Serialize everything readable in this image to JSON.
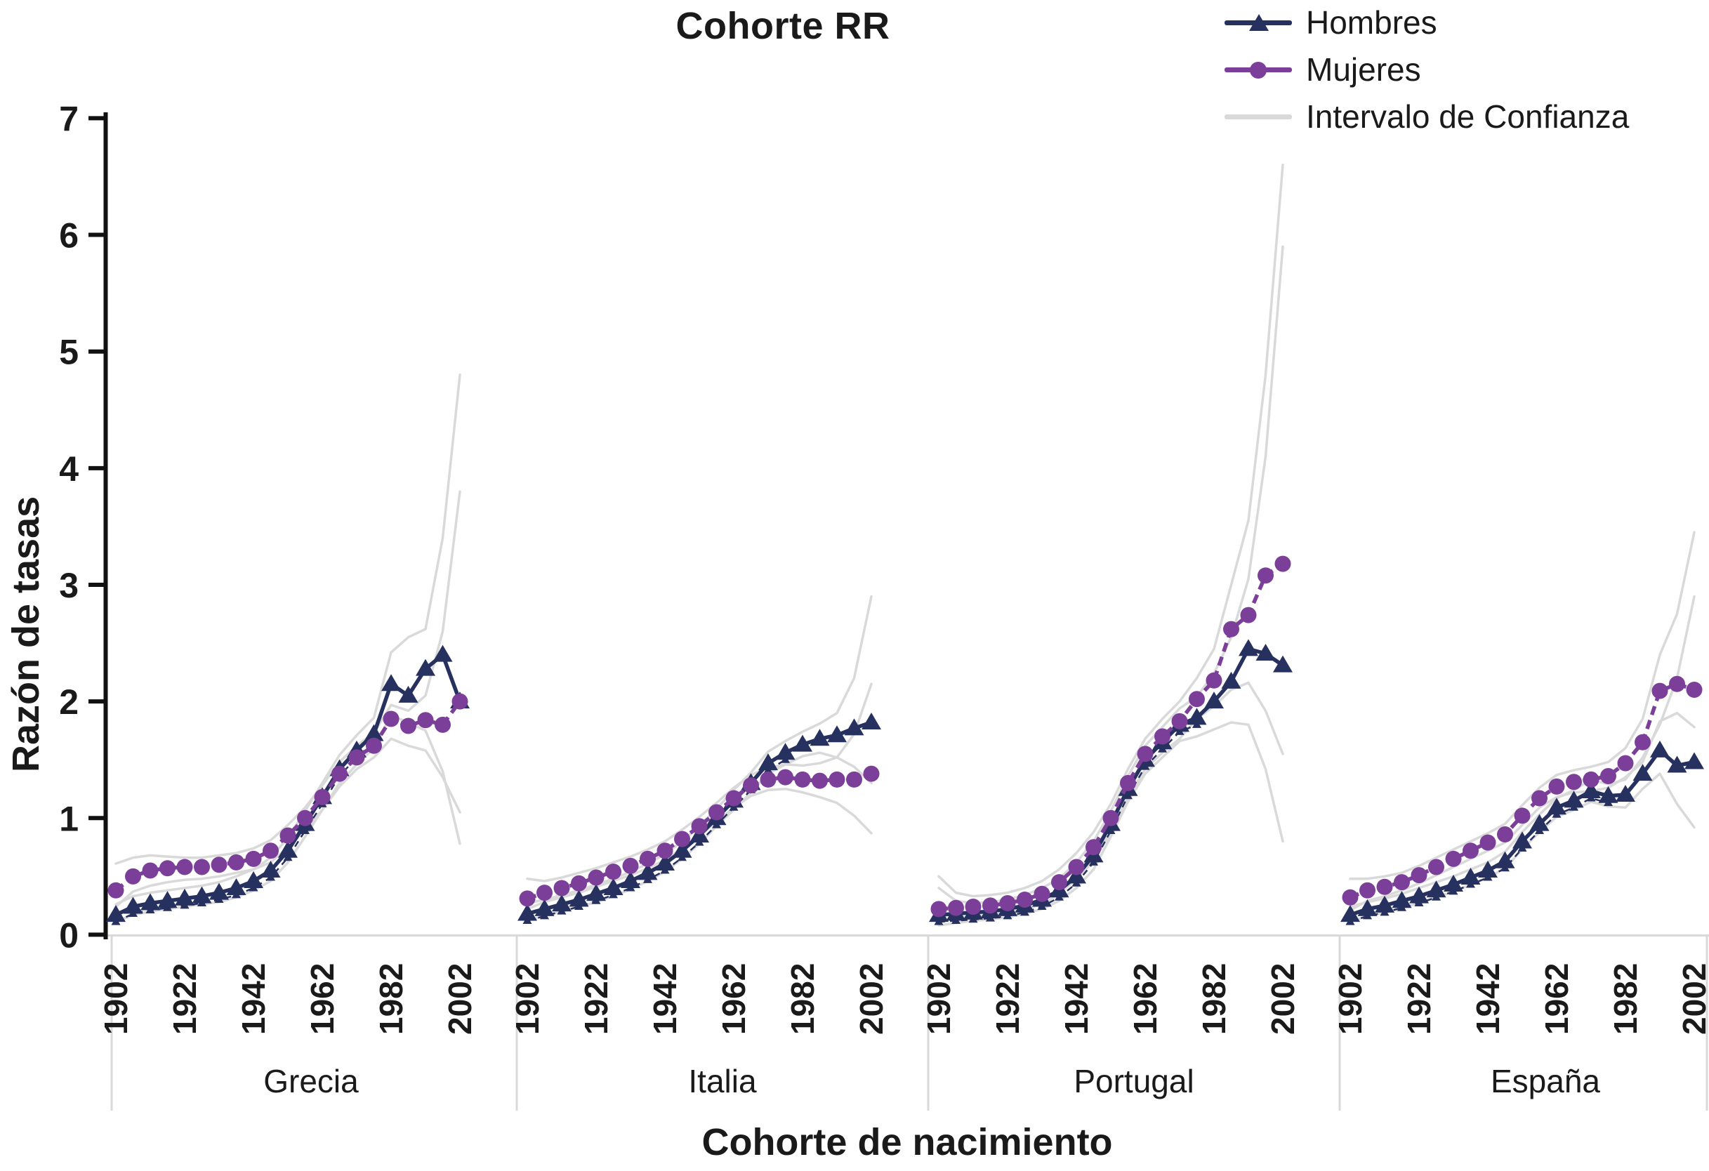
{
  "figure": {
    "title": "Cohorte RR",
    "y_axis_label": "Razón de tasas",
    "x_axis_label": "Cohorte de nacimiento",
    "legend": [
      {
        "label": "Hombres",
        "marker": "triangle-icon"
      },
      {
        "label": "Mujeres",
        "marker": "circle-icon"
      },
      {
        "label": "Intervalo de Confianza",
        "marker": "line-icon"
      }
    ],
    "colors": {
      "hombres": "#27315f",
      "mujeres": "#7c3f99",
      "ci": "#d9d9d9",
      "text": "#1a1a1a"
    }
  },
  "chart_data": {
    "type": "line",
    "title": "Cohorte RR",
    "xlabel": "Cohorte de nacimiento",
    "ylabel": "Razón de tasas",
    "ylim": [
      0,
      7
    ],
    "y_ticks": [
      0,
      1,
      2,
      3,
      4,
      5,
      6,
      7
    ],
    "x_tick_labels": [
      "1902",
      "1922",
      "1942",
      "1962",
      "1982",
      "2002"
    ],
    "grid": false,
    "legend_position": "top-right",
    "series_legend": [
      "Hombres",
      "Mujeres",
      "Intervalo de Confianza"
    ],
    "years": [
      1902,
      1907,
      1912,
      1917,
      1922,
      1927,
      1932,
      1937,
      1942,
      1947,
      1952,
      1957,
      1962,
      1967,
      1972,
      1977,
      1982,
      1987,
      1992,
      1997,
      2002
    ],
    "panels": [
      {
        "country": "Grecia",
        "mujeres": [
          0.38,
          0.5,
          0.55,
          0.57,
          0.58,
          0.58,
          0.6,
          0.62,
          0.65,
          0.72,
          0.85,
          1.0,
          1.18,
          1.38,
          1.52,
          1.62,
          1.85,
          1.79,
          1.84,
          1.8,
          2.0
        ],
        "hombres": [
          0.17,
          0.24,
          0.27,
          0.29,
          0.31,
          0.33,
          0.36,
          0.4,
          0.46,
          0.55,
          0.72,
          0.95,
          1.18,
          1.42,
          1.58,
          1.72,
          2.15,
          2.05,
          2.28,
          2.4,
          2.0
        ],
        "ci": {
          "mujeres_upper": [
            0.61,
            0.66,
            0.68,
            0.67,
            0.66,
            0.66,
            0.68,
            0.7,
            0.74,
            0.81,
            0.94,
            1.09,
            1.28,
            1.48,
            1.62,
            1.73,
            1.97,
            1.92,
            2.05,
            2.6,
            3.8
          ],
          "mujeres_lower": [
            0.24,
            0.37,
            0.42,
            0.45,
            0.47,
            0.48,
            0.5,
            0.53,
            0.56,
            0.62,
            0.75,
            0.9,
            1.07,
            1.27,
            1.42,
            1.52,
            1.68,
            1.62,
            1.58,
            1.35,
            1.05
          ],
          "hombres_upper": [
            0.26,
            0.33,
            0.36,
            0.38,
            0.4,
            0.42,
            0.45,
            0.5,
            0.56,
            0.66,
            0.83,
            1.06,
            1.3,
            1.54,
            1.71,
            1.86,
            2.42,
            2.55,
            2.62,
            3.4,
            4.8
          ],
          "hombres_lower": [
            0.11,
            0.17,
            0.2,
            0.22,
            0.24,
            0.26,
            0.28,
            0.32,
            0.38,
            0.46,
            0.62,
            0.84,
            1.07,
            1.3,
            1.46,
            1.6,
            1.88,
            1.82,
            1.75,
            1.4,
            0.78
          ]
        }
      },
      {
        "country": "Italia",
        "mujeres": [
          0.31,
          0.36,
          0.4,
          0.44,
          0.49,
          0.54,
          0.59,
          0.65,
          0.72,
          0.82,
          0.93,
          1.05,
          1.17,
          1.28,
          1.33,
          1.35,
          1.33,
          1.32,
          1.33,
          1.33,
          1.38
        ],
        "hombres": [
          0.18,
          0.22,
          0.26,
          0.3,
          0.35,
          0.4,
          0.46,
          0.53,
          0.61,
          0.72,
          0.85,
          1.0,
          1.15,
          1.3,
          1.47,
          1.56,
          1.63,
          1.68,
          1.71,
          1.77,
          1.82
        ],
        "ci": {
          "mujeres_upper": [
            0.48,
            0.46,
            0.49,
            0.53,
            0.57,
            0.62,
            0.67,
            0.73,
            0.8,
            0.9,
            1.01,
            1.13,
            1.26,
            1.37,
            1.43,
            1.46,
            1.45,
            1.47,
            1.52,
            1.72,
            2.15
          ],
          "mujeres_lower": [
            0.22,
            0.28,
            0.32,
            0.36,
            0.41,
            0.46,
            0.51,
            0.57,
            0.64,
            0.74,
            0.85,
            0.97,
            1.09,
            1.19,
            1.24,
            1.25,
            1.22,
            1.18,
            1.13,
            1.02,
            0.87
          ],
          "hombres_upper": [
            0.27,
            0.3,
            0.34,
            0.38,
            0.43,
            0.48,
            0.54,
            0.61,
            0.69,
            0.8,
            0.93,
            1.08,
            1.24,
            1.39,
            1.57,
            1.66,
            1.74,
            1.81,
            1.9,
            2.2,
            2.9
          ],
          "hombres_lower": [
            0.12,
            0.16,
            0.2,
            0.24,
            0.28,
            0.33,
            0.39,
            0.46,
            0.54,
            0.65,
            0.78,
            0.93,
            1.07,
            1.22,
            1.38,
            1.46,
            1.53,
            1.56,
            1.52,
            1.44,
            1.3
          ]
        }
      },
      {
        "country": "Portugal",
        "mujeres": [
          0.22,
          0.23,
          0.24,
          0.25,
          0.27,
          0.3,
          0.35,
          0.45,
          0.58,
          0.75,
          1.0,
          1.3,
          1.55,
          1.7,
          1.83,
          2.02,
          2.18,
          2.62,
          2.74,
          3.08,
          3.18
        ],
        "hombres": [
          0.17,
          0.18,
          0.19,
          0.2,
          0.22,
          0.25,
          0.3,
          0.38,
          0.5,
          0.68,
          0.95,
          1.25,
          1.5,
          1.65,
          1.8,
          1.86,
          2.0,
          2.17,
          2.45,
          2.41,
          2.31
        ],
        "ci": {
          "mujeres_upper": [
            0.5,
            0.36,
            0.33,
            0.34,
            0.36,
            0.4,
            0.46,
            0.56,
            0.7,
            0.88,
            1.12,
            1.42,
            1.68,
            1.85,
            2.0,
            2.2,
            2.45,
            3.0,
            3.55,
            4.8,
            6.6
          ],
          "mujeres_lower": [
            0.12,
            0.14,
            0.16,
            0.17,
            0.19,
            0.22,
            0.26,
            0.35,
            0.48,
            0.63,
            0.88,
            1.18,
            1.42,
            1.56,
            1.68,
            1.85,
            1.96,
            2.1,
            2.16,
            1.92,
            1.55
          ],
          "hombres_upper": [
            0.4,
            0.29,
            0.27,
            0.28,
            0.3,
            0.34,
            0.4,
            0.48,
            0.62,
            0.8,
            1.06,
            1.36,
            1.62,
            1.78,
            1.94,
            2.04,
            2.24,
            2.55,
            3.05,
            4.1,
            5.9
          ],
          "hombres_lower": [
            0.08,
            0.1,
            0.12,
            0.13,
            0.15,
            0.18,
            0.22,
            0.29,
            0.4,
            0.56,
            0.84,
            1.14,
            1.38,
            1.52,
            1.66,
            1.7,
            1.76,
            1.82,
            1.8,
            1.42,
            0.8
          ]
        }
      },
      {
        "country": "España",
        "mujeres": [
          0.32,
          0.38,
          0.41,
          0.45,
          0.51,
          0.58,
          0.65,
          0.72,
          0.79,
          0.86,
          1.02,
          1.17,
          1.27,
          1.31,
          1.33,
          1.36,
          1.47,
          1.65,
          2.09,
          2.15,
          2.1
        ],
        "hombres": [
          0.17,
          0.22,
          0.25,
          0.29,
          0.33,
          0.38,
          0.43,
          0.49,
          0.55,
          0.63,
          0.8,
          0.95,
          1.09,
          1.15,
          1.23,
          1.19,
          1.2,
          1.38,
          1.58,
          1.45,
          1.48
        ],
        "ci": {
          "mujeres_upper": [
            0.48,
            0.48,
            0.5,
            0.53,
            0.59,
            0.66,
            0.73,
            0.8,
            0.87,
            0.95,
            1.11,
            1.26,
            1.37,
            1.41,
            1.44,
            1.48,
            1.6,
            1.85,
            2.4,
            2.75,
            3.45
          ],
          "mujeres_lower": [
            0.21,
            0.29,
            0.33,
            0.38,
            0.44,
            0.51,
            0.58,
            0.65,
            0.72,
            0.79,
            0.94,
            1.09,
            1.18,
            1.22,
            1.23,
            1.26,
            1.35,
            1.48,
            1.83,
            1.9,
            1.78
          ],
          "hombres_upper": [
            0.24,
            0.28,
            0.31,
            0.35,
            0.4,
            0.45,
            0.5,
            0.56,
            0.62,
            0.71,
            0.88,
            1.03,
            1.17,
            1.24,
            1.33,
            1.29,
            1.33,
            1.52,
            1.8,
            2.2,
            2.9
          ],
          "hombres_lower": [
            0.11,
            0.16,
            0.19,
            0.23,
            0.27,
            0.32,
            0.37,
            0.43,
            0.49,
            0.57,
            0.73,
            0.88,
            1.01,
            1.07,
            1.14,
            1.1,
            1.09,
            1.25,
            1.38,
            1.12,
            0.92
          ]
        }
      }
    ]
  }
}
